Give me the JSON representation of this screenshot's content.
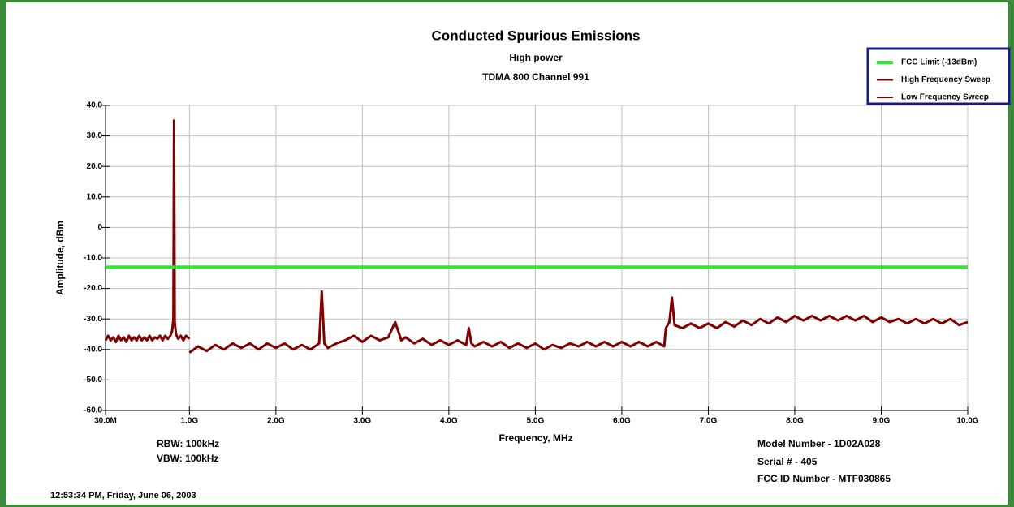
{
  "chart_data": {
    "type": "line",
    "title": "Conducted Spurious Emissions",
    "subtitle": "High power",
    "subtitle2": "TDMA 800 Channel 991",
    "x_label": "Frequency, MHz",
    "y_label": "Amplitude, dBm",
    "xlim": [
      30,
      10000
    ],
    "ylim": [
      -60,
      40
    ],
    "xticks": [
      {
        "value": 30,
        "label": "30.0M"
      },
      {
        "value": 1000,
        "label": "1.0G"
      },
      {
        "value": 2000,
        "label": "2.0G"
      },
      {
        "value": 3000,
        "label": "3.0G"
      },
      {
        "value": 4000,
        "label": "4.0G"
      },
      {
        "value": 5000,
        "label": "5.0G"
      },
      {
        "value": 6000,
        "label": "6.0G"
      },
      {
        "value": 7000,
        "label": "7.0G"
      },
      {
        "value": 8000,
        "label": "8.0G"
      },
      {
        "value": 9000,
        "label": "9.0G"
      },
      {
        "value": 10000,
        "label": "10.0G"
      }
    ],
    "yticks": [
      {
        "value": 40,
        "label": "40.0"
      },
      {
        "value": 30,
        "label": "30.0"
      },
      {
        "value": 20,
        "label": "20.0"
      },
      {
        "value": 10,
        "label": "10.0"
      },
      0,
      {
        "value": -10,
        "label": "-10.0"
      },
      {
        "value": -20,
        "label": "-20.0"
      },
      {
        "value": -30,
        "label": "-30.0"
      },
      {
        "value": -40,
        "label": "-40.0"
      },
      {
        "value": -50,
        "label": "-50.0"
      },
      {
        "value": -60,
        "label": "-60.0"
      }
    ],
    "grid": true,
    "legend": "top-right",
    "series": [
      {
        "name": "FCC Limit (-13dBm)",
        "color": "#33e633",
        "x": [
          30,
          10000
        ],
        "values": [
          -13,
          -13
        ]
      },
      {
        "name": "High Frequency Sweep",
        "color": "#800000",
        "x": [
          1000,
          1100,
          1200,
          1300,
          1400,
          1500,
          1600,
          1700,
          1800,
          1900,
          2000,
          2100,
          2200,
          2300,
          2400,
          2500,
          2530,
          2560,
          2600,
          2700,
          2800,
          2900,
          3000,
          3100,
          3200,
          3300,
          3380,
          3450,
          3500,
          3600,
          3700,
          3800,
          3900,
          4000,
          4100,
          4200,
          4230,
          4260,
          4300,
          4400,
          4500,
          4600,
          4700,
          4800,
          4900,
          5000,
          5100,
          5200,
          5300,
          5400,
          5500,
          5600,
          5700,
          5800,
          5900,
          6000,
          6100,
          6200,
          6300,
          6400,
          6490,
          6510,
          6550,
          6580,
          6610,
          6700,
          6800,
          6900,
          7000,
          7100,
          7200,
          7300,
          7400,
          7500,
          7600,
          7700,
          7800,
          7900,
          8000,
          8100,
          8200,
          8300,
          8400,
          8500,
          8600,
          8700,
          8800,
          8900,
          9000,
          9100,
          9200,
          9300,
          9400,
          9500,
          9600,
          9700,
          9800,
          9900,
          10000
        ],
        "values": [
          -41,
          -39,
          -40.5,
          -38.5,
          -40,
          -38,
          -39.5,
          -38,
          -40,
          -38,
          -39.5,
          -38,
          -40,
          -38.5,
          -40,
          -38,
          -21,
          -38,
          -39.5,
          -38,
          -37,
          -35.5,
          -37.5,
          -35.5,
          -37,
          -36,
          -31,
          -37,
          -36,
          -38,
          -36.5,
          -38.5,
          -37,
          -38.5,
          -37,
          -38.5,
          -33,
          -38,
          -39,
          -37.5,
          -39,
          -37.5,
          -39.5,
          -38,
          -39.5,
          -38,
          -40,
          -38.5,
          -39.5,
          -38,
          -39,
          -37.5,
          -39,
          -37.5,
          -39,
          -37.5,
          -39,
          -37.5,
          -39,
          -37.5,
          -39,
          -33,
          -31,
          -23,
          -32,
          -33,
          -31.5,
          -33,
          -31.5,
          -33,
          -31,
          -32.5,
          -30.5,
          -32,
          -30,
          -31.5,
          -29.5,
          -31,
          -29,
          -30.5,
          -29,
          -30.5,
          -29,
          -30.5,
          -29,
          -30.5,
          -29,
          -31,
          -29.5,
          -31,
          -30,
          -31.5,
          -30,
          -31.5,
          -30,
          -31.5,
          -30,
          -32,
          -31
        ]
      },
      {
        "name": "Low Frequency Sweep",
        "color": "#800000",
        "x": [
          30,
          60,
          90,
          120,
          150,
          180,
          210,
          240,
          270,
          300,
          330,
          360,
          390,
          420,
          450,
          480,
          510,
          540,
          570,
          600,
          630,
          660,
          690,
          720,
          750,
          780,
          800,
          815,
          822,
          830,
          845,
          870,
          900,
          930,
          960,
          1000
        ],
        "values": [
          -37,
          -35.5,
          -37,
          -36,
          -37.5,
          -35.5,
          -37,
          -36,
          -37.5,
          -35.5,
          -37,
          -36,
          -37,
          -35.5,
          -37,
          -36,
          -37,
          -35.5,
          -37,
          -36,
          -36.5,
          -35.5,
          -37,
          -35.5,
          -36.5,
          -35.5,
          -34,
          -30,
          35,
          -31,
          -35,
          -36.5,
          -35.5,
          -37,
          -35.5,
          -36.5
        ]
      }
    ],
    "annotations": [
      "RBW: 100kHz",
      "VBW: 100kHz",
      "Model Number - 1D02A028",
      "Serial # - 405",
      "FCC ID Number - MTF030865",
      "12:53:34 PM, Friday, June 06, 2003"
    ]
  }
}
